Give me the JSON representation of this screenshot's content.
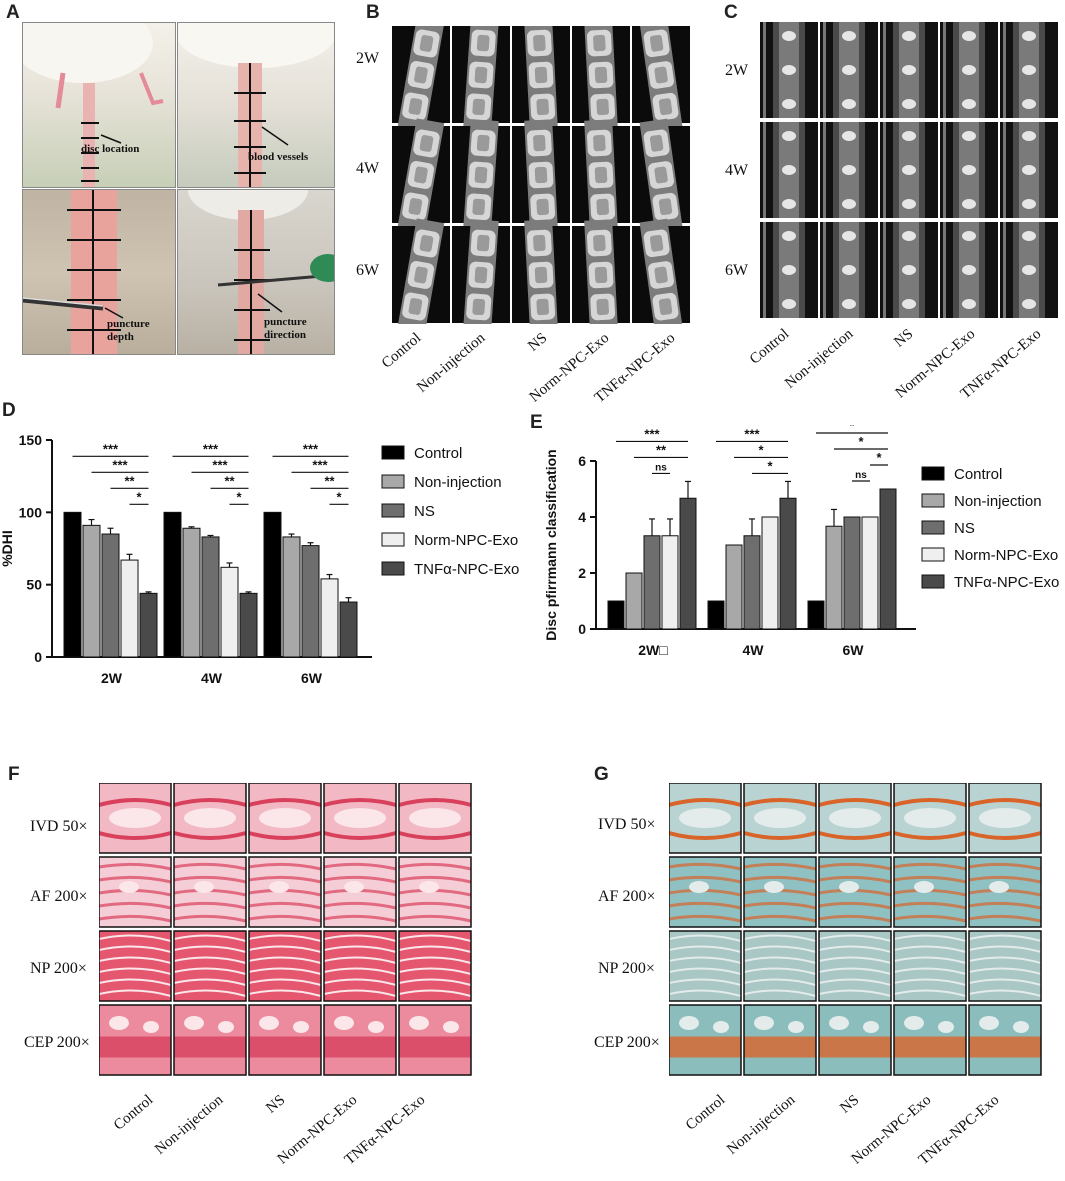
{
  "panels": {
    "A": {
      "letter": "A",
      "annotations": [
        "disc location",
        "blood vessels",
        "puncture depth",
        "puncture direction"
      ]
    },
    "B": {
      "letter": "B",
      "rows": [
        "2W",
        "4W",
        "6W"
      ],
      "columns": [
        "Control",
        "Non-injection",
        "NS",
        "Norm-NPC-Exo",
        "TNFα-NPC-Exo"
      ]
    },
    "C": {
      "letter": "C",
      "rows": [
        "2W",
        "4W",
        "6W"
      ],
      "columns": [
        "Control",
        "Non-injection",
        "NS",
        "Norm-NPC-Exo",
        "TNFα-NPC-Exo"
      ]
    },
    "D": {
      "letter": "D"
    },
    "E": {
      "letter": "E"
    },
    "F": {
      "letter": "F",
      "rows": [
        "IVD 50×",
        "AF 200×",
        "NP 200×",
        "CEP 200×"
      ],
      "columns": [
        "Control",
        "Non-injection",
        "NS",
        "Norm-NPC-Exo",
        "TNFα-NPC-Exo"
      ]
    },
    "G": {
      "letter": "G",
      "rows": [
        "IVD 50×",
        "AF 200×",
        "NP 200×",
        "CEP 200×"
      ],
      "columns": [
        "Control",
        "Non-injection",
        "NS",
        "Norm-NPC-Exo",
        "TNFα-NPC-Exo"
      ]
    }
  },
  "colors": {
    "Control": "#000000",
    "Non-injection": "#a8a8a8",
    "NS": "#6e6e6e",
    "Norm-NPC-Exo": "#efefef",
    "TNFα-NPC-Exo": "#4a4a4a",
    "he_stain": "#e8617e",
    "safranin_bg": "#8fb8b8",
    "safranin_red": "#d9642a"
  },
  "chart_data": [
    {
      "type": "bar",
      "panel": "D",
      "ylabel": "%DHI",
      "xlabel": "",
      "categories": [
        "2W",
        "4W",
        "6W"
      ],
      "ylim": [
        0,
        150
      ],
      "yticks": [
        0,
        50,
        100,
        150
      ],
      "series": [
        {
          "name": "Control",
          "values": [
            100,
            100,
            100
          ],
          "errors": [
            0,
            0,
            0
          ]
        },
        {
          "name": "Non-injection",
          "values": [
            91,
            89,
            83
          ],
          "errors": [
            4,
            1,
            2
          ]
        },
        {
          "name": "NS",
          "values": [
            85,
            83,
            77
          ],
          "errors": [
            4,
            1,
            2
          ]
        },
        {
          "name": "Norm-NPC-Exo",
          "values": [
            67,
            62,
            54
          ],
          "errors": [
            4,
            3,
            3
          ]
        },
        {
          "name": "TNFα-NPC-Exo",
          "values": [
            44,
            44,
            38
          ],
          "errors": [
            1,
            1,
            3
          ]
        }
      ],
      "significance": [
        {
          "group": 0,
          "lines": [
            [
              "Control",
              "TNFα-NPC-Exo",
              "***"
            ],
            [
              "Non-injection",
              "TNFα-NPC-Exo",
              "***"
            ],
            [
              "NS",
              "TNFα-NPC-Exo",
              "**"
            ],
            [
              "Norm-NPC-Exo",
              "TNFα-NPC-Exo",
              "*"
            ]
          ]
        },
        {
          "group": 1,
          "lines": [
            [
              "Control",
              "TNFα-NPC-Exo",
              "***"
            ],
            [
              "Non-injection",
              "TNFα-NPC-Exo",
              "***"
            ],
            [
              "NS",
              "TNFα-NPC-Exo",
              "**"
            ],
            [
              "Norm-NPC-Exo",
              "TNFα-NPC-Exo",
              "*"
            ]
          ]
        },
        {
          "group": 2,
          "lines": [
            [
              "Control",
              "TNFα-NPC-Exo",
              "***"
            ],
            [
              "Non-injection",
              "TNFα-NPC-Exo",
              "***"
            ],
            [
              "NS",
              "TNFα-NPC-Exo",
              "**"
            ],
            [
              "Norm-NPC-Exo",
              "TNFα-NPC-Exo",
              "*"
            ]
          ]
        }
      ],
      "legend": "right"
    },
    {
      "type": "bar",
      "panel": "E",
      "ylabel": "Disc pfirrmann classification",
      "xlabel": "",
      "categories": [
        "2W□",
        "4W",
        "6W"
      ],
      "ylim": [
        0,
        6
      ],
      "yticks": [
        0,
        2,
        4,
        6
      ],
      "series": [
        {
          "name": "Control",
          "values": [
            1,
            1,
            1
          ],
          "errors": [
            0,
            0,
            0
          ]
        },
        {
          "name": "Non-injection",
          "values": [
            2,
            3,
            3.67
          ],
          "errors": [
            0,
            0,
            0.6
          ]
        },
        {
          "name": "NS",
          "values": [
            3.33,
            3.33,
            4
          ],
          "errors": [
            0.6,
            0.6,
            0
          ]
        },
        {
          "name": "Norm-NPC-Exo",
          "values": [
            3.33,
            4,
            4
          ],
          "errors": [
            0.6,
            0,
            0
          ]
        },
        {
          "name": "TNFα-NPC-Exo",
          "values": [
            4.67,
            4.67,
            5
          ],
          "errors": [
            0.6,
            0.6,
            0
          ]
        }
      ],
      "significance": [
        {
          "group": 0,
          "lines": [
            [
              "Control",
              "TNFα-NPC-Exo",
              "***"
            ],
            [
              "Non-injection",
              "TNFα-NPC-Exo",
              "**"
            ],
            [
              "NS",
              "Norm-NPC-Exo",
              "ns"
            ]
          ]
        },
        {
          "group": 1,
          "lines": [
            [
              "Control",
              "TNFα-NPC-Exo",
              "***"
            ],
            [
              "Non-injection",
              "TNFα-NPC-Exo",
              "*"
            ],
            [
              "NS",
              "TNFα-NPC-Exo",
              "*"
            ]
          ]
        },
        {
          "group": 2,
          "lines": [
            [
              "Control",
              "TNFα-NPC-Exo",
              "*"
            ],
            [
              "Non-injection",
              "TNFα-NPC-Exo",
              "*"
            ],
            [
              "Norm-NPC-Exo",
              "TNFα-NPC-Exo",
              "*"
            ],
            [
              "NS",
              "Norm-NPC-Exo",
              "ns"
            ]
          ]
        }
      ],
      "legend": "right"
    }
  ]
}
